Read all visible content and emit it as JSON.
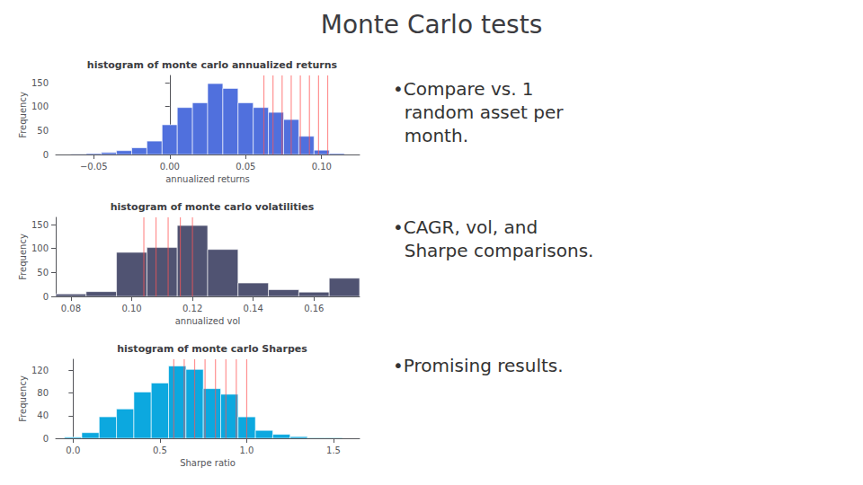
{
  "title": "Monte Carlo tests",
  "annotations": [
    "•Compare vs. 1\n  random asset per\n  month.",
    "•CAGR, vol, and\n  Sharpe comparisons.",
    "•Promising results."
  ],
  "chart_data": [
    {
      "type": "histogram",
      "title": "histogram of monte carlo annualized returns",
      "xlabel": "annualized returns",
      "ylabel": "Frequency",
      "bins": [
        -0.065,
        -0.055,
        -0.045,
        -0.035,
        -0.025,
        -0.015,
        -0.005,
        0.005,
        0.015,
        0.025,
        0.035,
        0.045,
        0.055,
        0.065,
        0.075,
        0.085,
        0.095,
        0.105,
        0.115
      ],
      "values": [
        1,
        2,
        4,
        8,
        14,
        28,
        62,
        98,
        108,
        148,
        138,
        108,
        98,
        88,
        73,
        38,
        9,
        2
      ],
      "vlines": [
        0.062,
        0.068,
        0.074,
        0.08,
        0.086,
        0.092,
        0.098,
        0.104
      ],
      "vline_color": "#ff5555",
      "xlim": [
        -0.075,
        0.125
      ],
      "ylim": [
        0,
        165
      ],
      "xticks": [
        {
          "value": -0.05,
          "label": "−0.05"
        },
        {
          "value": 0.0,
          "label": "0.00"
        },
        0.05,
        {
          "value": 0.1,
          "label": "0.10"
        }
      ],
      "yticks": [
        0,
        50,
        100,
        150
      ],
      "grid": false
    },
    {
      "type": "histogram",
      "title": "histogram of monte carlo volatilities",
      "xlabel": "annualized vol",
      "ylabel": "Frequency",
      "bins": [
        0.075,
        0.085,
        0.095,
        0.105,
        0.115,
        0.125,
        0.135,
        0.145,
        0.155,
        0.165,
        0.175
      ],
      "values": [
        5,
        10,
        92,
        102,
        148,
        98,
        28,
        14,
        9,
        38
      ],
      "vlines": [
        0.104,
        0.108,
        0.112,
        0.116,
        0.12
      ],
      "vline_color": "#ff5555",
      "xlim": [
        0.075,
        0.175
      ],
      "ylim": [
        0,
        165
      ],
      "xticks": [
        0.08,
        {
          "value": 0.1,
          "label": "0.10"
        },
        0.12,
        0.14,
        0.16
      ],
      "yticks": [
        0,
        50,
        100,
        150
      ],
      "grid": false
    },
    {
      "type": "histogram",
      "title": "histogram of monte carlo Sharpes",
      "xlabel": "Sharpe ratio",
      "ylabel": "Frequency",
      "bins": [
        -0.05,
        0.05,
        0.15,
        0.25,
        0.35,
        0.45,
        0.55,
        0.65,
        0.75,
        0.85,
        0.95,
        1.05,
        1.15,
        1.25,
        1.35,
        1.45,
        1.55
      ],
      "values": [
        2,
        10,
        38,
        52,
        82,
        98,
        128,
        122,
        88,
        78,
        38,
        14,
        7,
        3,
        1,
        1
      ],
      "vlines": [
        0.58,
        0.64,
        0.7,
        0.76,
        0.82,
        0.88,
        0.94,
        1.0
      ],
      "vline_color": "#ff5555",
      "xlim": [
        -0.1,
        1.65
      ],
      "ylim": [
        0,
        140
      ],
      "xticks": [
        {
          "value": 0.0,
          "label": "0.0"
        },
        0.5,
        {
          "value": 1.0,
          "label": "1.0"
        },
        1.5
      ],
      "yticks": [
        0,
        40,
        80,
        120
      ],
      "grid": false
    }
  ]
}
